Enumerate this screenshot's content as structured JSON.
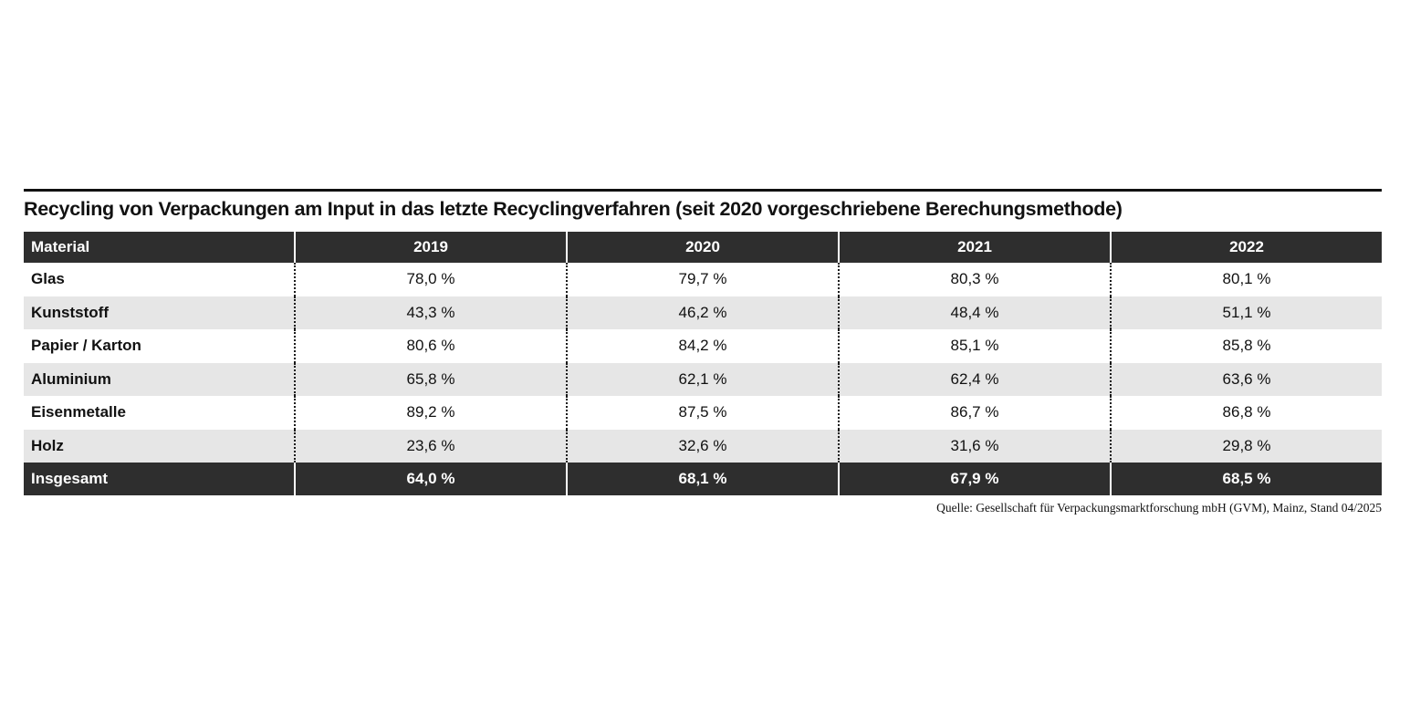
{
  "title": "Recycling von Verpackungen am Input in das letzte Recyclingverfahren (seit 2020 vorgeschriebene Berechungsmethode)",
  "source": "Quelle: Gesellschaft für Verpackungsmarktforschung mbH (GVM), Mainz, Stand 04/2025",
  "colors": {
    "dark_row": "#2e2e2e",
    "stripe_row": "#e6e6e6",
    "text": "#111111",
    "header_text": "#ffffff"
  },
  "table": {
    "headers": [
      "Material",
      "2019",
      "2020",
      "2021",
      "2022"
    ],
    "rows": [
      {
        "label": "Glas",
        "values": [
          "78,0 %",
          "79,7 %",
          "80,3 %",
          "80,1 %"
        ]
      },
      {
        "label": "Kunststoff",
        "values": [
          "43,3 %",
          "46,2 %",
          "48,4 %",
          "51,1 %"
        ]
      },
      {
        "label": "Papier / Karton",
        "values": [
          "80,6 %",
          "84,2 %",
          "85,1 %",
          "85,8 %"
        ]
      },
      {
        "label": "Aluminium",
        "values": [
          "65,8 %",
          "62,1 %",
          "62,4 %",
          "63,6 %"
        ]
      },
      {
        "label": "Eisenmetalle",
        "values": [
          "89,2 %",
          "87,5 %",
          "86,7 %",
          "86,8 %"
        ]
      },
      {
        "label": "Holz",
        "values": [
          "23,6 %",
          "32,6 %",
          "31,6 %",
          "29,8 %"
        ]
      }
    ],
    "total_row": {
      "label": "Insgesamt",
      "values": [
        "64,0 %",
        "68,1 %",
        "67,9 %",
        "68,5 %"
      ]
    }
  },
  "chart_data": {
    "type": "table",
    "title": "Recycling von Verpackungen am Input in das letzte Recyclingverfahren (seit 2020 vorgeschriebene Berechungsmethode)",
    "categories": [
      "2019",
      "2020",
      "2021",
      "2022"
    ],
    "unit": "%",
    "series": [
      {
        "name": "Glas",
        "values": [
          78.0,
          79.7,
          80.3,
          80.1
        ]
      },
      {
        "name": "Kunststoff",
        "values": [
          43.3,
          46.2,
          48.4,
          51.1
        ]
      },
      {
        "name": "Papier / Karton",
        "values": [
          80.6,
          84.2,
          85.1,
          85.8
        ]
      },
      {
        "name": "Aluminium",
        "values": [
          65.8,
          62.1,
          62.4,
          63.6
        ]
      },
      {
        "name": "Eisenmetalle",
        "values": [
          89.2,
          87.5,
          86.7,
          86.8
        ]
      },
      {
        "name": "Holz",
        "values": [
          23.6,
          32.6,
          31.6,
          29.8
        ]
      },
      {
        "name": "Insgesamt",
        "values": [
          64.0,
          68.1,
          67.9,
          68.5
        ]
      }
    ],
    "source": "Quelle: Gesellschaft für Verpackungsmarktforschung mbH (GVM), Mainz, Stand 04/2025"
  }
}
